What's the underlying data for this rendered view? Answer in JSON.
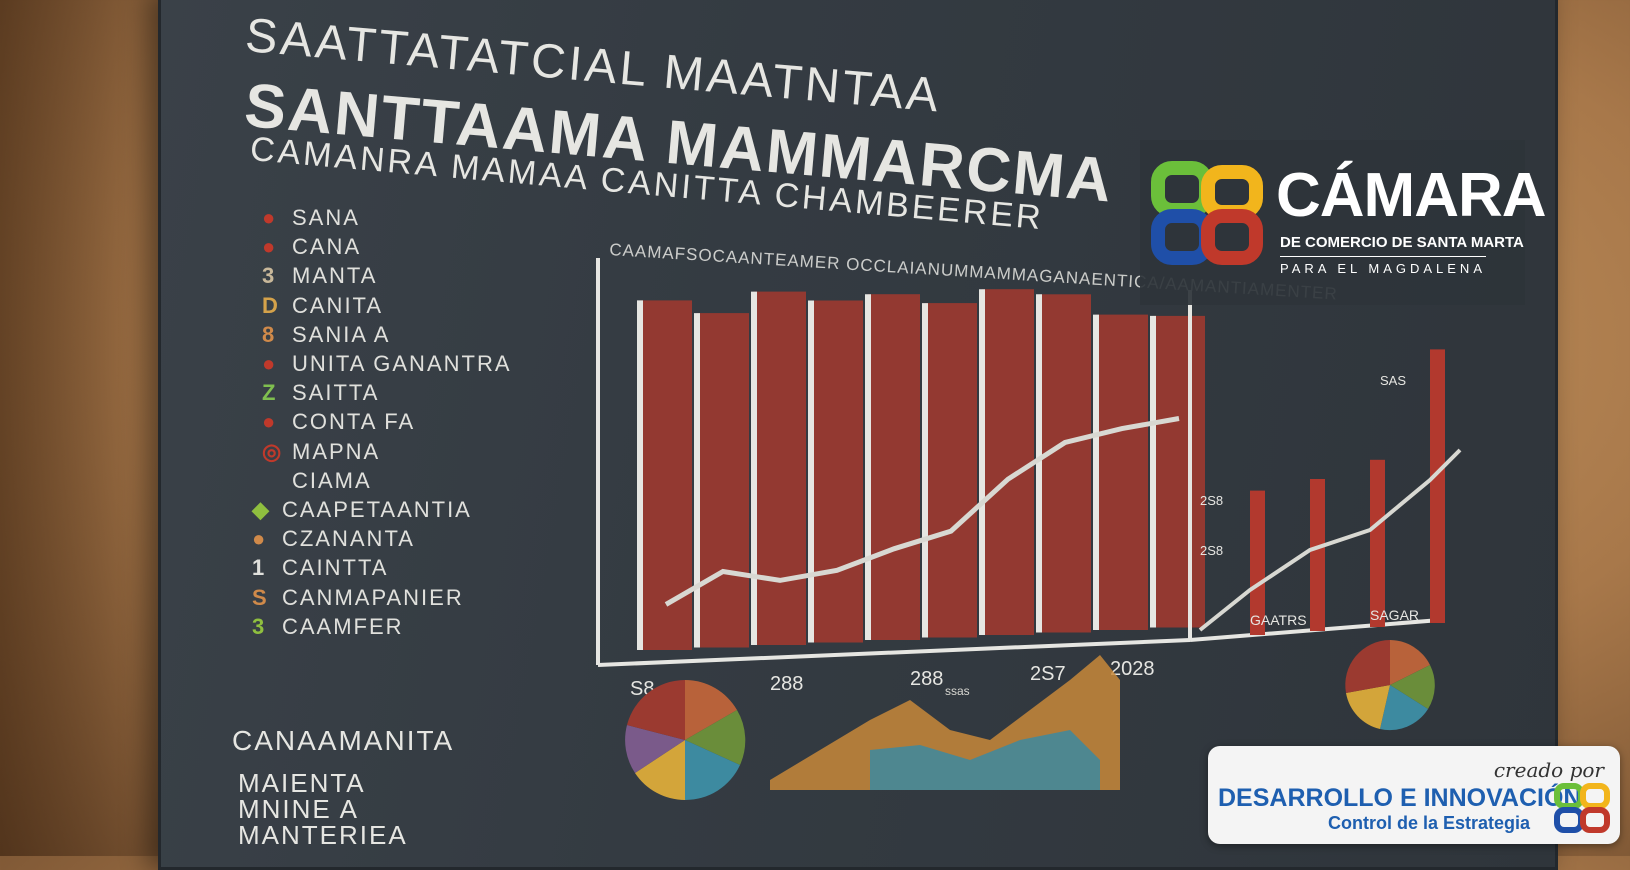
{
  "board": {
    "title_line1": "SAATTATATCIAL MAATNTAA",
    "title_line2": "SANTTAAMA MAMMARCMA",
    "title_line3": "CAMANRA MAMAA CANITTA CHAMBEERER",
    "legend": [
      {
        "mark": "●",
        "label": "SANA",
        "color": "#c0392b"
      },
      {
        "mark": "●",
        "label": "CANA",
        "color": "#c0392b"
      },
      {
        "mark": "3",
        "label": "MANTA",
        "color": "#c8b89a"
      },
      {
        "mark": "D",
        "label": "CANITA",
        "color": "#d4a24a"
      },
      {
        "mark": "8",
        "label": "SANIA A",
        "color": "#d08a4a"
      },
      {
        "mark": "●",
        "label": "UNITA GANANTRA",
        "color": "#c0392b"
      },
      {
        "mark": "Z",
        "label": "SAITTA",
        "color": "#7fbf4f"
      },
      {
        "mark": "●",
        "label": "CONTA FA",
        "color": "#c0392b"
      },
      {
        "mark": "◎",
        "label": "MAPNA",
        "color": "#c0392b"
      },
      {
        "mark": "",
        "label": "CIAMA",
        "color": "#c8b89a"
      },
      {
        "mark": "◆",
        "label": "CAAPETAANTIA",
        "color": "#8fbf3f"
      },
      {
        "mark": "●",
        "label": "CZANANTA",
        "color": "#d08a4a"
      },
      {
        "mark": "1",
        "label": "CAINTTA",
        "color": "#e0e0dc"
      },
      {
        "mark": "S",
        "label": "CANMAPANIER",
        "color": "#d08a4a"
      },
      {
        "mark": "3",
        "label": "CAAMFER",
        "color": "#8fbf3f"
      }
    ],
    "sub_left_title": "CANAAMANITA",
    "sub_left_lines": "MAIENTA\nMNINE A\nMANTERIEA",
    "chart_title": "CAAMAFSOCAANTEAMER OCCLAIANUMMAMMAGANAENTICA/AAMANTIAMENTER",
    "colors": {
      "bar": "#9b3a30",
      "line": "#d8d8d2",
      "chalk": "#e6e6e2"
    }
  },
  "chart_data": {
    "type": "bar",
    "title": "CAAMAFSOCAANTEAMER OCCLAIANUMMAMMAGANAENTICA/AAMANTIAMENTER",
    "categories": [
      "",
      "",
      "",
      "",
      "",
      "",
      "",
      "",
      "",
      ""
    ],
    "x_tick_labels": [
      "S8",
      "288",
      "288",
      "2S7",
      "2028"
    ],
    "series": [
      {
        "values": [
          92,
          88,
          93,
          90,
          91,
          88,
          91,
          89,
          83,
          82
        ]
      },
      {
        "values": [
          12,
          20,
          17,
          19,
          24,
          28,
          41,
          50,
          53,
          55
        ]
      }
    ],
    "right_chart": {
      "bar_values": [
        38,
        40,
        44,
        72
      ],
      "tick_labels": [
        "GAATRS",
        "SAGAR"
      ],
      "annotations": [
        "2S8",
        "2S8",
        "SAS"
      ]
    }
  },
  "logo": {
    "title": "CÁMARA",
    "subtitle": "DE COMERCIO DE SANTA MARTA",
    "subtitle2": "PARA EL MAGDALENA"
  },
  "badge": {
    "top": "creado por",
    "main": "DESARROLLO E INNOVACIÓN",
    "sub": "Control de la Estrategia"
  }
}
